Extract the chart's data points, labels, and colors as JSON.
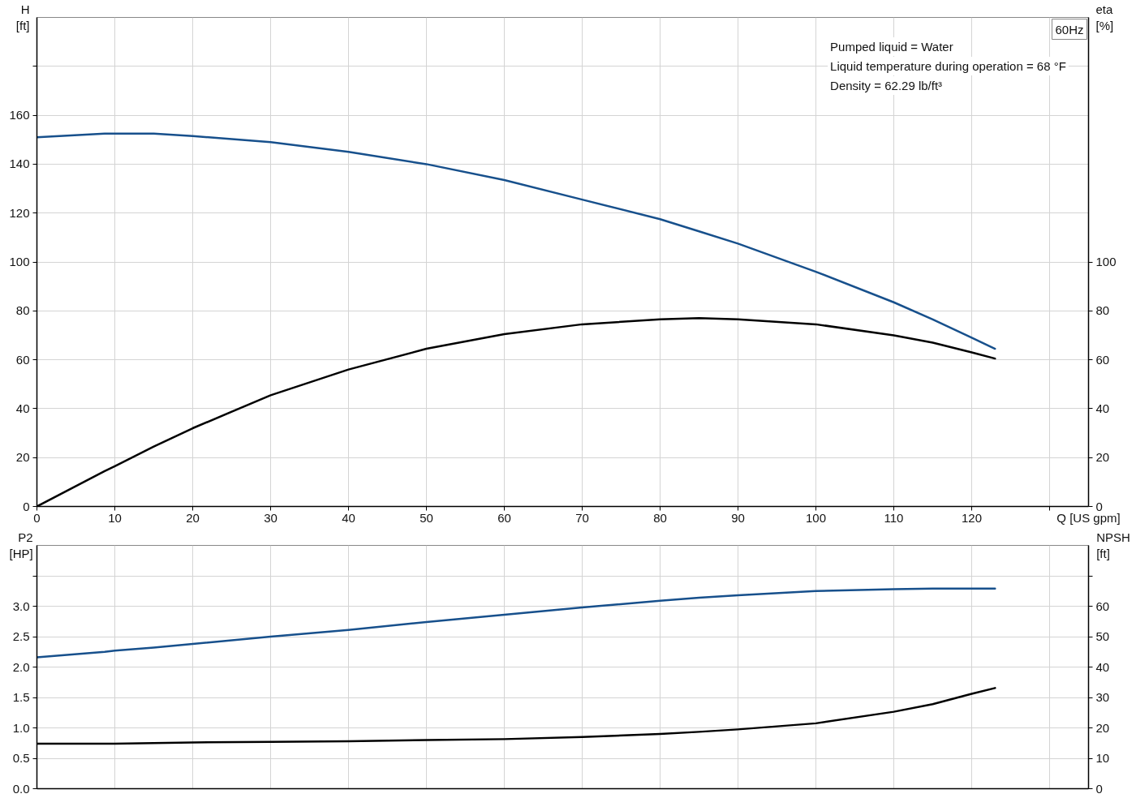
{
  "chart_data": [
    {
      "type": "line",
      "title": "60Hz",
      "xlabel": "Q [US gpm]",
      "ylabel": "H [ft]",
      "y2label": "eta [%]",
      "annotations": [
        "Pumped liquid = Water",
        "Liquid temperature during operation = 68 °F",
        "Density = 62.29 lb/ft³"
      ],
      "x": [
        0,
        8.7,
        10,
        15,
        20,
        30,
        40,
        50,
        60,
        70,
        80,
        85,
        90,
        100,
        110,
        115,
        120,
        123
      ],
      "series": [
        {
          "color": "#17508c",
          "values": [
            151,
            152.5,
            152.5,
            152.5,
            151.5,
            149,
            145,
            140,
            133.5,
            125.5,
            117.5,
            112.5,
            107.5,
            96,
            83.5,
            76.5,
            69,
            64.5
          ]
        },
        {
          "color": "#000000",
          "axis": "y2",
          "values": [
            0,
            14.5,
            16.5,
            24.5,
            32,
            45.5,
            56,
            64.5,
            70.5,
            74.5,
            76.5,
            77,
            76.5,
            74.5,
            70,
            67,
            63,
            60.5
          ]
        }
      ],
      "xlim": [
        0,
        135
      ],
      "ylim": [
        0,
        200
      ],
      "y2lim": [
        0,
        200
      ],
      "xticks": [
        0,
        10,
        20,
        30,
        40,
        50,
        60,
        70,
        80,
        90,
        100,
        110,
        120,
        {
          "value": 130,
          "label": null
        }
      ],
      "yticks": [
        0,
        20,
        40,
        60,
        80,
        100,
        120,
        140,
        160,
        {
          "value": 180,
          "label": null
        }
      ],
      "y2ticks": [
        0,
        20,
        40,
        60,
        80,
        100
      ],
      "grid": true
    },
    {
      "type": "line",
      "ylabel": "P2 [HP]",
      "y2label": "NPSH [ft]",
      "x": [
        0,
        8.7,
        10,
        15,
        20,
        30,
        40,
        50,
        60,
        70,
        80,
        85,
        90,
        100,
        110,
        115,
        120,
        123
      ],
      "series": [
        {
          "color": "#17508c",
          "values": [
            2.16,
            2.25,
            2.27,
            2.32,
            2.38,
            2.5,
            2.61,
            2.74,
            2.86,
            2.98,
            3.09,
            3.14,
            3.18,
            3.25,
            3.28,
            3.29,
            3.29,
            3.29
          ]
        },
        {
          "color": "#000000",
          "axis": "y2",
          "values": [
            14.8,
            14.8,
            14.8,
            15,
            15.2,
            15.4,
            15.6,
            16,
            16.3,
            17,
            18,
            18.7,
            19.5,
            21.5,
            25.3,
            27.8,
            31.2,
            33.1
          ]
        }
      ],
      "xlim": [
        0,
        135
      ],
      "ylim": [
        0,
        4
      ],
      "y2lim": [
        0,
        80
      ],
      "xticks": [
        0,
        10,
        20,
        30,
        40,
        50,
        60,
        70,
        80,
        90,
        100,
        110,
        120,
        130
      ],
      "yticks": [
        {
          "value": 0,
          "label": "0.0"
        },
        {
          "value": 0.5,
          "label": "0.5"
        },
        {
          "value": 1,
          "label": "1.0"
        },
        {
          "value": 1.5,
          "label": "1.5"
        },
        {
          "value": 2,
          "label": "2.0"
        },
        {
          "value": 2.5,
          "label": "2.5"
        },
        {
          "value": 3,
          "label": "3.0"
        },
        {
          "value": 3.5,
          "label": null
        }
      ],
      "y2ticks": [
        0,
        10,
        20,
        30,
        40,
        50,
        60,
        {
          "value": 70,
          "label": null
        }
      ],
      "grid": true,
      "tick_labels": "y"
    }
  ]
}
